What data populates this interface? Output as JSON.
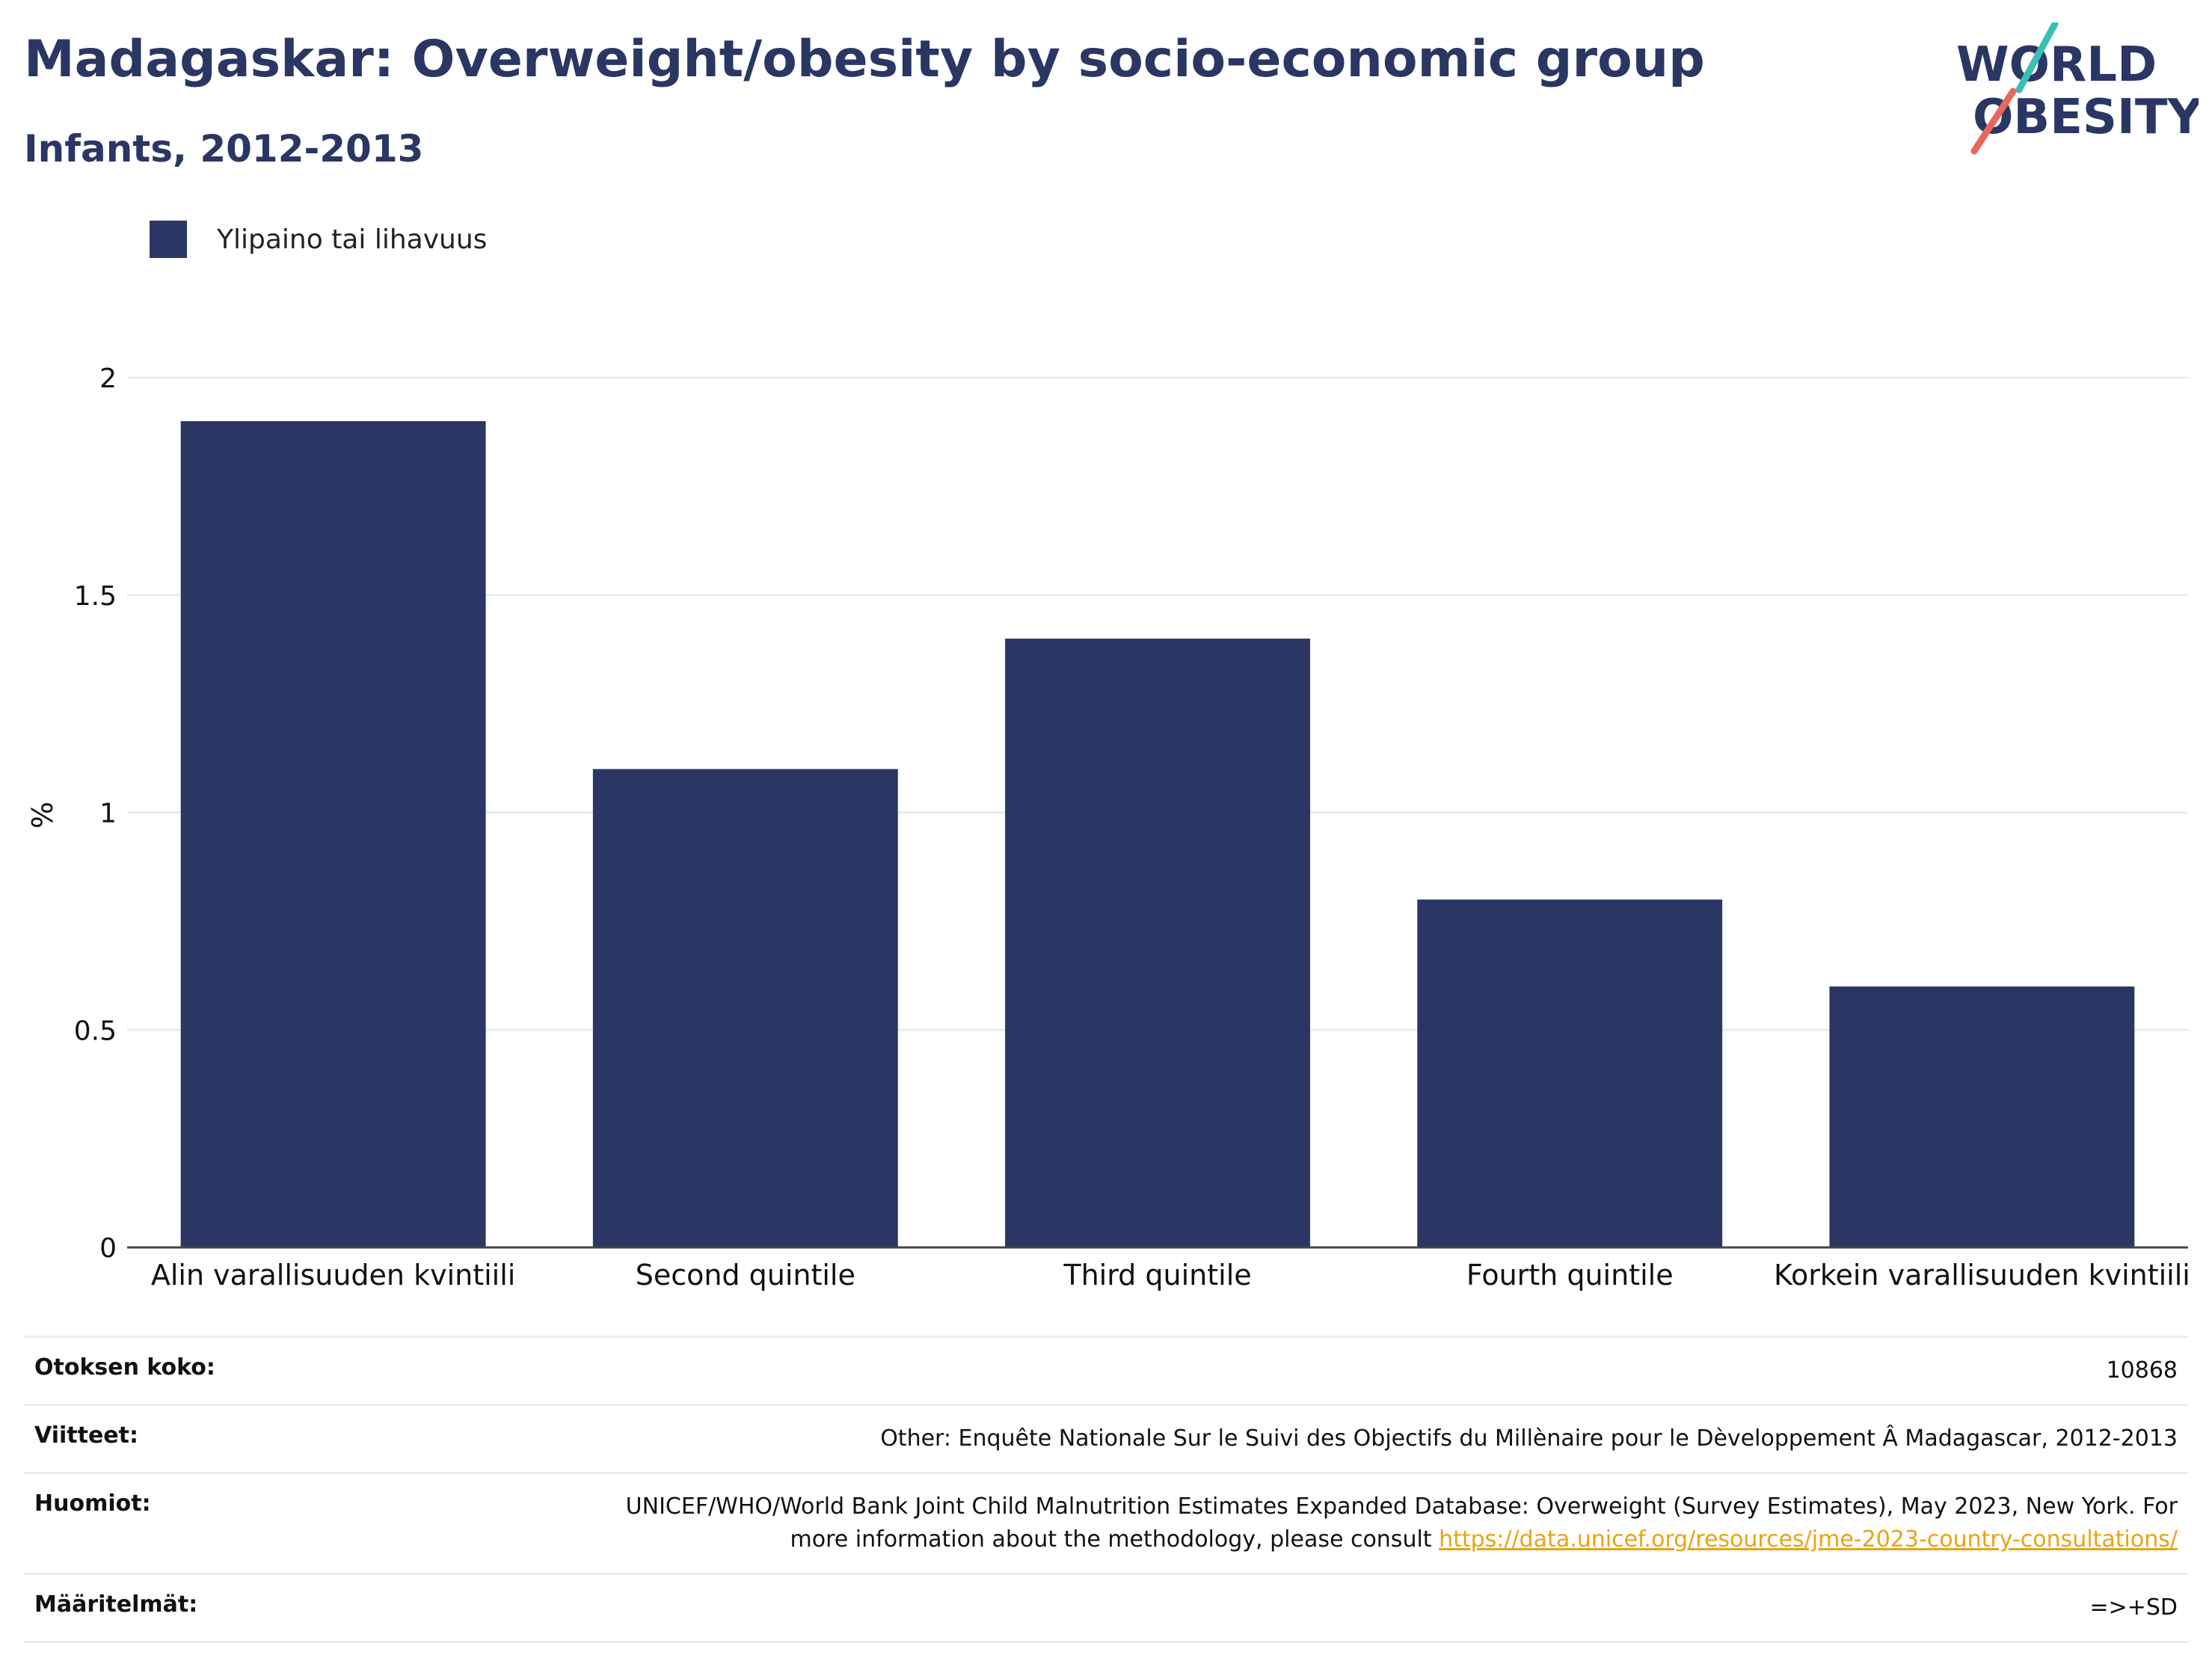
{
  "header": {
    "title": "Madagaskar: Overweight/obesity by socio-economic group",
    "subtitle": "Infants, 2012-2013"
  },
  "logo": {
    "line1": "WORLD",
    "line2": "OBESITY"
  },
  "colors": {
    "bar": "#2a3663",
    "title": "#2a3663",
    "grid": "#e8ebf2",
    "link": "#e8a317",
    "logo_teal": "#3bbfb5",
    "logo_coral": "#e8675a"
  },
  "chart_data": {
    "type": "bar",
    "categories": [
      "Alin varallisuuden kvintiili",
      "Second quintile",
      "Third quintile",
      "Fourth quintile",
      "Korkein varallisuuden kvintiili"
    ],
    "series": [
      {
        "name": "Ylipaino tai lihavuus",
        "values": [
          1.9,
          1.1,
          1.4,
          0.8,
          0.6
        ]
      }
    ],
    "ylabel": "%",
    "xlabel": "",
    "ylim": [
      0,
      2
    ],
    "yticks": [
      0,
      0.5,
      1,
      1.5,
      2
    ],
    "ytick_labels": [
      "0",
      "0.5",
      "1",
      "1.5",
      "2"
    ],
    "grid": true,
    "legend_position": "top-left"
  },
  "meta": {
    "sample_label": "Otoksen koko:",
    "sample_value": "10868",
    "refs_label": "Viitteet:",
    "refs_value": "Other: Enquête Nationale Sur le Suivi des Objectifs du Millènaire pour le Dèveloppement Â Madagascar, 2012-2013",
    "notes_label": "Huomiot:",
    "notes_text": "UNICEF/WHO/World Bank Joint Child Malnutrition Estimates Expanded Database: Overweight (Survey Estimates), May 2023, New York. For more information about the methodology, please consult ",
    "notes_link": "https://data.unicef.org/resources/jme-2023-country-consultations/",
    "defs_label": "Määritelmät:",
    "defs_value": "=>+SD"
  }
}
